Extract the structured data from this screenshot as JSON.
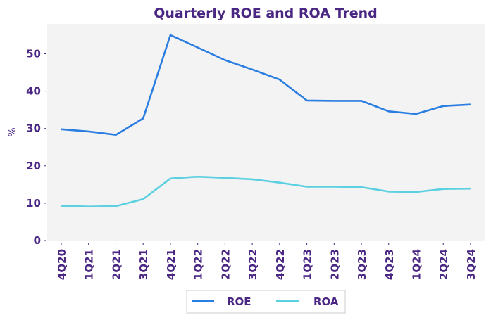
{
  "chart_data": {
    "type": "line",
    "title": "Quarterly ROE and ROA Trend",
    "xlabel": "",
    "ylabel": "%",
    "ylim": [
      0,
      58
    ],
    "yticks": [
      0,
      10,
      20,
      30,
      40,
      50
    ],
    "grid": false,
    "legend_position": "bottom-center",
    "categories": [
      "4Q20",
      "1Q21",
      "2Q21",
      "3Q21",
      "4Q21",
      "1Q22",
      "2Q22",
      "3Q22",
      "4Q22",
      "1Q23",
      "2Q23",
      "3Q23",
      "4Q23",
      "1Q24",
      "2Q24",
      "3Q24"
    ],
    "series": [
      {
        "name": "ROE",
        "color": "#2a7de1",
        "values": [
          29.8,
          29.2,
          28.3,
          32.7,
          55.0,
          51.7,
          48.3,
          45.8,
          43.1,
          37.5,
          37.4,
          37.4,
          34.6,
          33.9,
          36.0,
          36.4
        ]
      },
      {
        "name": "ROA",
        "color": "#5bd0e0",
        "values": [
          9.3,
          9.1,
          9.2,
          11.1,
          16.6,
          17.1,
          16.8,
          16.4,
          15.5,
          14.4,
          14.4,
          14.3,
          13.1,
          13.0,
          13.8,
          13.9
        ]
      }
    ]
  },
  "colors": {
    "text": "#4a2783",
    "plot_background": "#f3f3f3",
    "legend_border": "#cccccc"
  }
}
